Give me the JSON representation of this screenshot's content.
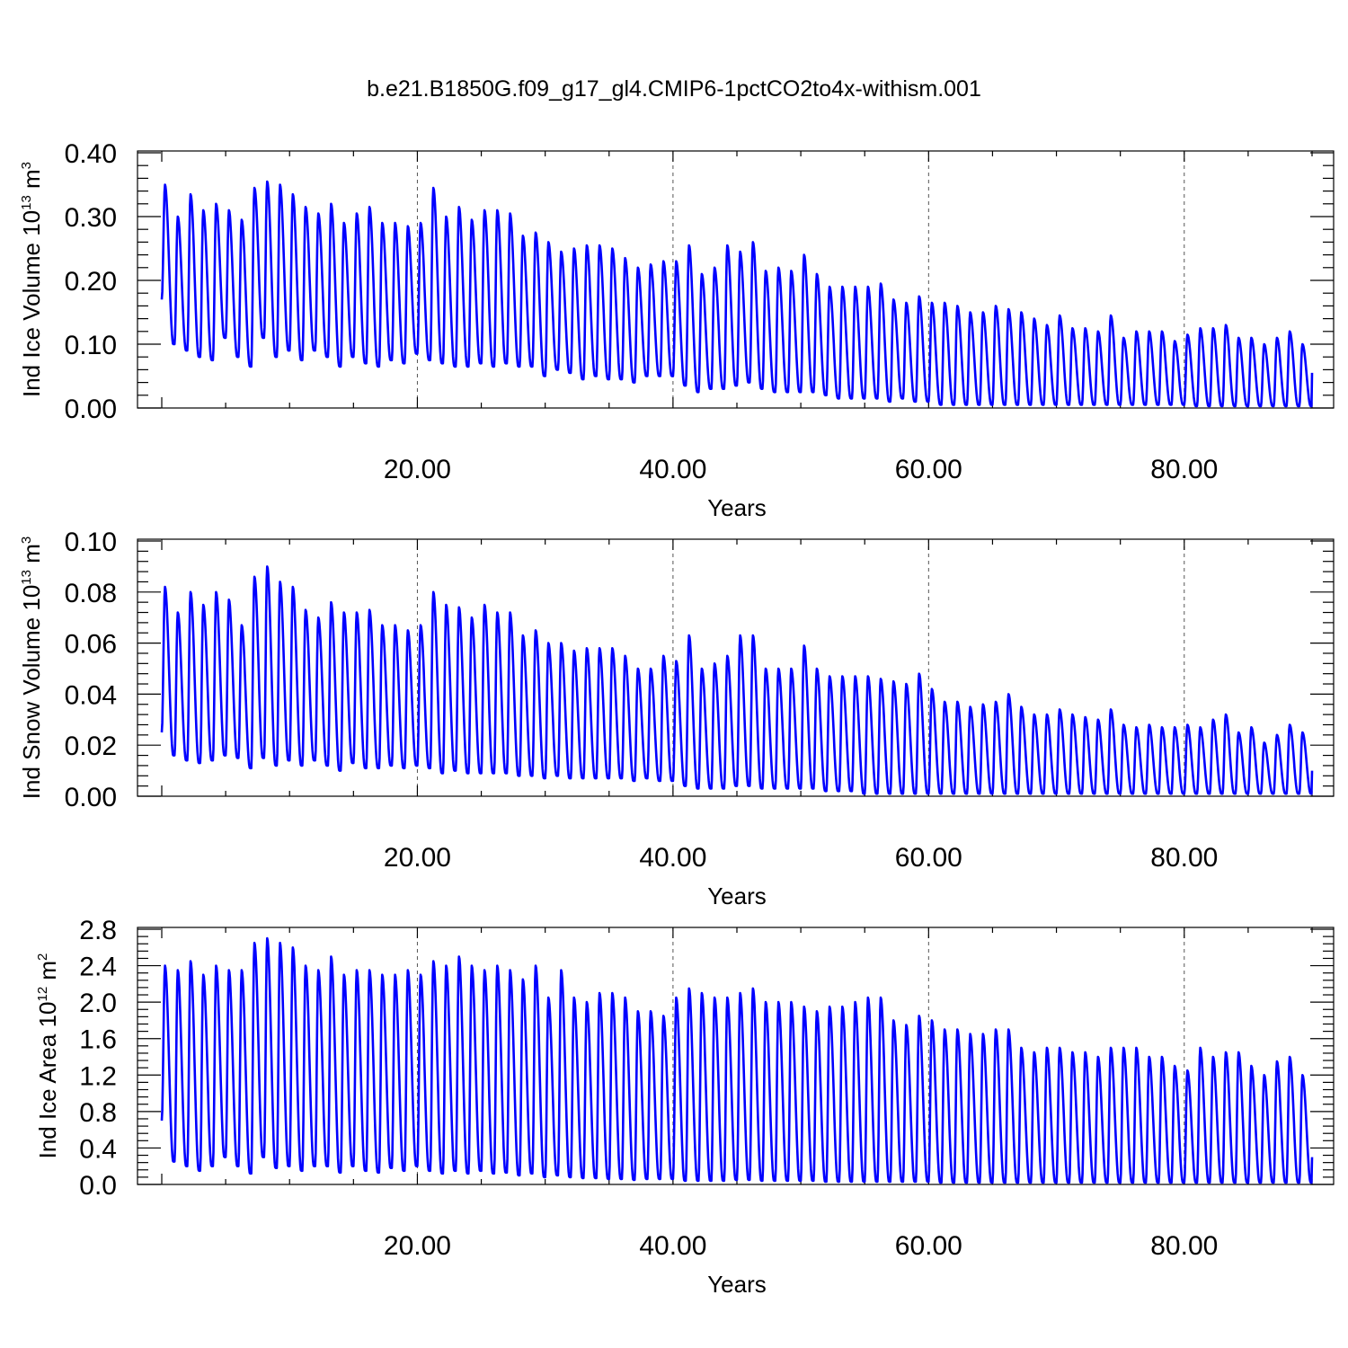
{
  "figure": {
    "title": "b.e21.B1850G.f09_g17_gl4.CMIP6-1pctCO2to4x-withism.001"
  },
  "chart_data": [
    {
      "type": "line",
      "ylabel": "Ind Ice Volume 10",
      "ylabel_exp": "13",
      "ylabel_unit": " m",
      "ylabel_unit_exp": "3",
      "xlabel": "Years",
      "xlim": [
        0,
        90
      ],
      "ylim": [
        0,
        0.4
      ],
      "x_ticks": [
        20,
        40,
        60,
        80
      ],
      "x_tick_labels": [
        "20.00",
        "40.00",
        "60.00",
        "80.00"
      ],
      "y_ticks": [
        0,
        0.1,
        0.2,
        0.3,
        0.4
      ],
      "y_tick_labels": [
        "0.00",
        "0.10",
        "0.20",
        "0.30",
        "0.40"
      ],
      "grid": "x-dashed",
      "color": "#0000ff",
      "cycle_years": 1,
      "start_value": 0.17,
      "end_value": 0.055,
      "annual_max": [
        0.35,
        0.3,
        0.335,
        0.31,
        0.32,
        0.31,
        0.295,
        0.345,
        0.355,
        0.35,
        0.335,
        0.315,
        0.305,
        0.32,
        0.29,
        0.305,
        0.315,
        0.29,
        0.29,
        0.285,
        0.29,
        0.345,
        0.3,
        0.315,
        0.295,
        0.31,
        0.31,
        0.305,
        0.27,
        0.275,
        0.26,
        0.245,
        0.25,
        0.255,
        0.255,
        0.25,
        0.235,
        0.22,
        0.225,
        0.23,
        0.23,
        0.255,
        0.21,
        0.22,
        0.255,
        0.245,
        0.26,
        0.215,
        0.22,
        0.215,
        0.24,
        0.21,
        0.19,
        0.19,
        0.19,
        0.19,
        0.195,
        0.17,
        0.165,
        0.175,
        0.165,
        0.165,
        0.16,
        0.15,
        0.15,
        0.16,
        0.155,
        0.15,
        0.14,
        0.13,
        0.145,
        0.125,
        0.125,
        0.12,
        0.145,
        0.11,
        0.12,
        0.12,
        0.12,
        0.105,
        0.115,
        0.125,
        0.125,
        0.13,
        0.11,
        0.11,
        0.1,
        0.11,
        0.12,
        0.1
      ],
      "annual_min": [
        0.1,
        0.09,
        0.08,
        0.075,
        0.11,
        0.08,
        0.065,
        0.11,
        0.08,
        0.09,
        0.075,
        0.09,
        0.08,
        0.065,
        0.08,
        0.07,
        0.065,
        0.075,
        0.07,
        0.085,
        0.075,
        0.07,
        0.065,
        0.065,
        0.07,
        0.065,
        0.07,
        0.065,
        0.065,
        0.05,
        0.06,
        0.055,
        0.045,
        0.05,
        0.045,
        0.045,
        0.04,
        0.05,
        0.05,
        0.05,
        0.035,
        0.025,
        0.03,
        0.03,
        0.035,
        0.04,
        0.03,
        0.025,
        0.025,
        0.025,
        0.025,
        0.02,
        0.015,
        0.015,
        0.015,
        0.015,
        0.01,
        0.015,
        0.01,
        0.01,
        0.005,
        0.005,
        0.005,
        0.005,
        0.005,
        0.005,
        0.005,
        0.005,
        0.005,
        0.005,
        0.005,
        0.005,
        0.005,
        0.005,
        0.005,
        0.005,
        0.005,
        0.005,
        0.005,
        0.005,
        0.003,
        0.003,
        0.003,
        0.003,
        0.003,
        0.003,
        0.003,
        0.003,
        0.003,
        0.003
      ]
    },
    {
      "type": "line",
      "ylabel": "Ind Snow Volume 10",
      "ylabel_exp": "13",
      "ylabel_unit": " m",
      "ylabel_unit_exp": "3",
      "xlabel": "Years",
      "xlim": [
        0,
        90
      ],
      "ylim": [
        0,
        0.1
      ],
      "x_ticks": [
        20,
        40,
        60,
        80
      ],
      "x_tick_labels": [
        "20.00",
        "40.00",
        "60.00",
        "80.00"
      ],
      "y_ticks": [
        0,
        0.02,
        0.04,
        0.06,
        0.08,
        0.1
      ],
      "y_tick_labels": [
        "0.00",
        "0.02",
        "0.04",
        "0.06",
        "0.08",
        "0.10"
      ],
      "grid": "x-dashed",
      "color": "#0000ff",
      "cycle_years": 1,
      "start_value": 0.025,
      "end_value": 0.01,
      "annual_max": [
        0.082,
        0.072,
        0.08,
        0.075,
        0.08,
        0.077,
        0.067,
        0.086,
        0.09,
        0.084,
        0.082,
        0.073,
        0.07,
        0.076,
        0.072,
        0.072,
        0.073,
        0.067,
        0.067,
        0.065,
        0.067,
        0.08,
        0.075,
        0.074,
        0.07,
        0.075,
        0.072,
        0.072,
        0.063,
        0.065,
        0.06,
        0.06,
        0.057,
        0.058,
        0.058,
        0.058,
        0.055,
        0.05,
        0.05,
        0.055,
        0.053,
        0.063,
        0.05,
        0.052,
        0.055,
        0.063,
        0.063,
        0.05,
        0.05,
        0.05,
        0.059,
        0.05,
        0.047,
        0.047,
        0.047,
        0.047,
        0.046,
        0.045,
        0.044,
        0.048,
        0.042,
        0.037,
        0.037,
        0.035,
        0.036,
        0.037,
        0.04,
        0.035,
        0.032,
        0.032,
        0.034,
        0.032,
        0.031,
        0.03,
        0.034,
        0.028,
        0.027,
        0.028,
        0.027,
        0.027,
        0.028,
        0.027,
        0.03,
        0.032,
        0.025,
        0.027,
        0.021,
        0.024,
        0.028,
        0.025
      ],
      "annual_min": [
        0.016,
        0.014,
        0.013,
        0.014,
        0.016,
        0.015,
        0.011,
        0.015,
        0.012,
        0.014,
        0.012,
        0.014,
        0.012,
        0.01,
        0.013,
        0.011,
        0.011,
        0.012,
        0.011,
        0.012,
        0.011,
        0.009,
        0.01,
        0.009,
        0.009,
        0.009,
        0.009,
        0.008,
        0.008,
        0.007,
        0.008,
        0.007,
        0.007,
        0.007,
        0.007,
        0.007,
        0.006,
        0.007,
        0.006,
        0.006,
        0.004,
        0.003,
        0.003,
        0.003,
        0.004,
        0.004,
        0.003,
        0.003,
        0.003,
        0.003,
        0.003,
        0.002,
        0.002,
        0.002,
        0.001,
        0.001,
        0.001,
        0.001,
        0.001,
        0.001,
        0.001,
        0.001,
        0.001,
        0.001,
        0.001,
        0.001,
        0.001,
        0.001,
        0.001,
        0.001,
        0.001,
        0.001,
        0.001,
        0.001,
        0.001,
        0.001,
        0.001,
        0.001,
        0.001,
        0.001,
        0.001,
        0.001,
        0.001,
        0.001,
        0.001,
        0.001,
        0.001,
        0.001,
        0.001,
        0.001
      ]
    },
    {
      "type": "line",
      "ylabel": "Ind Ice Area 10",
      "ylabel_exp": "12",
      "ylabel_unit": " m",
      "ylabel_unit_exp": "2",
      "xlabel": "Years",
      "xlim": [
        0,
        90
      ],
      "ylim": [
        0,
        2.8
      ],
      "x_ticks": [
        20,
        40,
        60,
        80
      ],
      "x_tick_labels": [
        "20.00",
        "40.00",
        "60.00",
        "80.00"
      ],
      "y_ticks": [
        0,
        0.4,
        0.8,
        1.2,
        1.6,
        2.0,
        2.4,
        2.8
      ],
      "y_tick_labels": [
        "0.0",
        "0.4",
        "0.8",
        "1.2",
        "1.6",
        "2.0",
        "2.4",
        "2.8"
      ],
      "grid": "x-dashed",
      "color": "#0000ff",
      "cycle_years": 1,
      "start_value": 0.7,
      "end_value": 0.3,
      "annual_max": [
        2.4,
        2.35,
        2.45,
        2.3,
        2.4,
        2.35,
        2.35,
        2.65,
        2.7,
        2.65,
        2.6,
        2.4,
        2.35,
        2.5,
        2.3,
        2.35,
        2.35,
        2.3,
        2.3,
        2.35,
        2.3,
        2.45,
        2.4,
        2.5,
        2.4,
        2.35,
        2.4,
        2.35,
        2.25,
        2.4,
        2.05,
        2.35,
        2.05,
        2.0,
        2.1,
        2.1,
        2.05,
        1.9,
        1.9,
        1.85,
        2.05,
        2.15,
        2.1,
        2.05,
        2.05,
        2.1,
        2.15,
        2.0,
        2.0,
        2.0,
        1.95,
        1.9,
        1.95,
        1.95,
        2.0,
        2.05,
        2.05,
        1.8,
        1.75,
        1.85,
        1.8,
        1.7,
        1.7,
        1.65,
        1.65,
        1.7,
        1.7,
        1.5,
        1.45,
        1.5,
        1.5,
        1.45,
        1.45,
        1.4,
        1.5,
        1.5,
        1.5,
        1.4,
        1.4,
        1.3,
        1.25,
        1.5,
        1.4,
        1.45,
        1.45,
        1.3,
        1.2,
        1.35,
        1.4,
        1.2
      ],
      "annual_min": [
        0.25,
        0.2,
        0.15,
        0.2,
        0.3,
        0.2,
        0.12,
        0.3,
        0.18,
        0.2,
        0.15,
        0.2,
        0.2,
        0.13,
        0.2,
        0.15,
        0.13,
        0.18,
        0.15,
        0.2,
        0.15,
        0.12,
        0.15,
        0.12,
        0.15,
        0.12,
        0.13,
        0.1,
        0.12,
        0.08,
        0.1,
        0.08,
        0.07,
        0.07,
        0.06,
        0.06,
        0.05,
        0.06,
        0.06,
        0.06,
        0.04,
        0.04,
        0.04,
        0.04,
        0.05,
        0.05,
        0.04,
        0.04,
        0.04,
        0.04,
        0.04,
        0.03,
        0.03,
        0.03,
        0.03,
        0.03,
        0.03,
        0.03,
        0.03,
        0.03,
        0.02,
        0.02,
        0.02,
        0.02,
        0.02,
        0.02,
        0.02,
        0.02,
        0.02,
        0.02,
        0.02,
        0.02,
        0.02,
        0.02,
        0.02,
        0.02,
        0.02,
        0.02,
        0.02,
        0.02,
        0.02,
        0.02,
        0.02,
        0.02,
        0.02,
        0.02,
        0.02,
        0.02,
        0.02,
        0.02
      ]
    }
  ]
}
